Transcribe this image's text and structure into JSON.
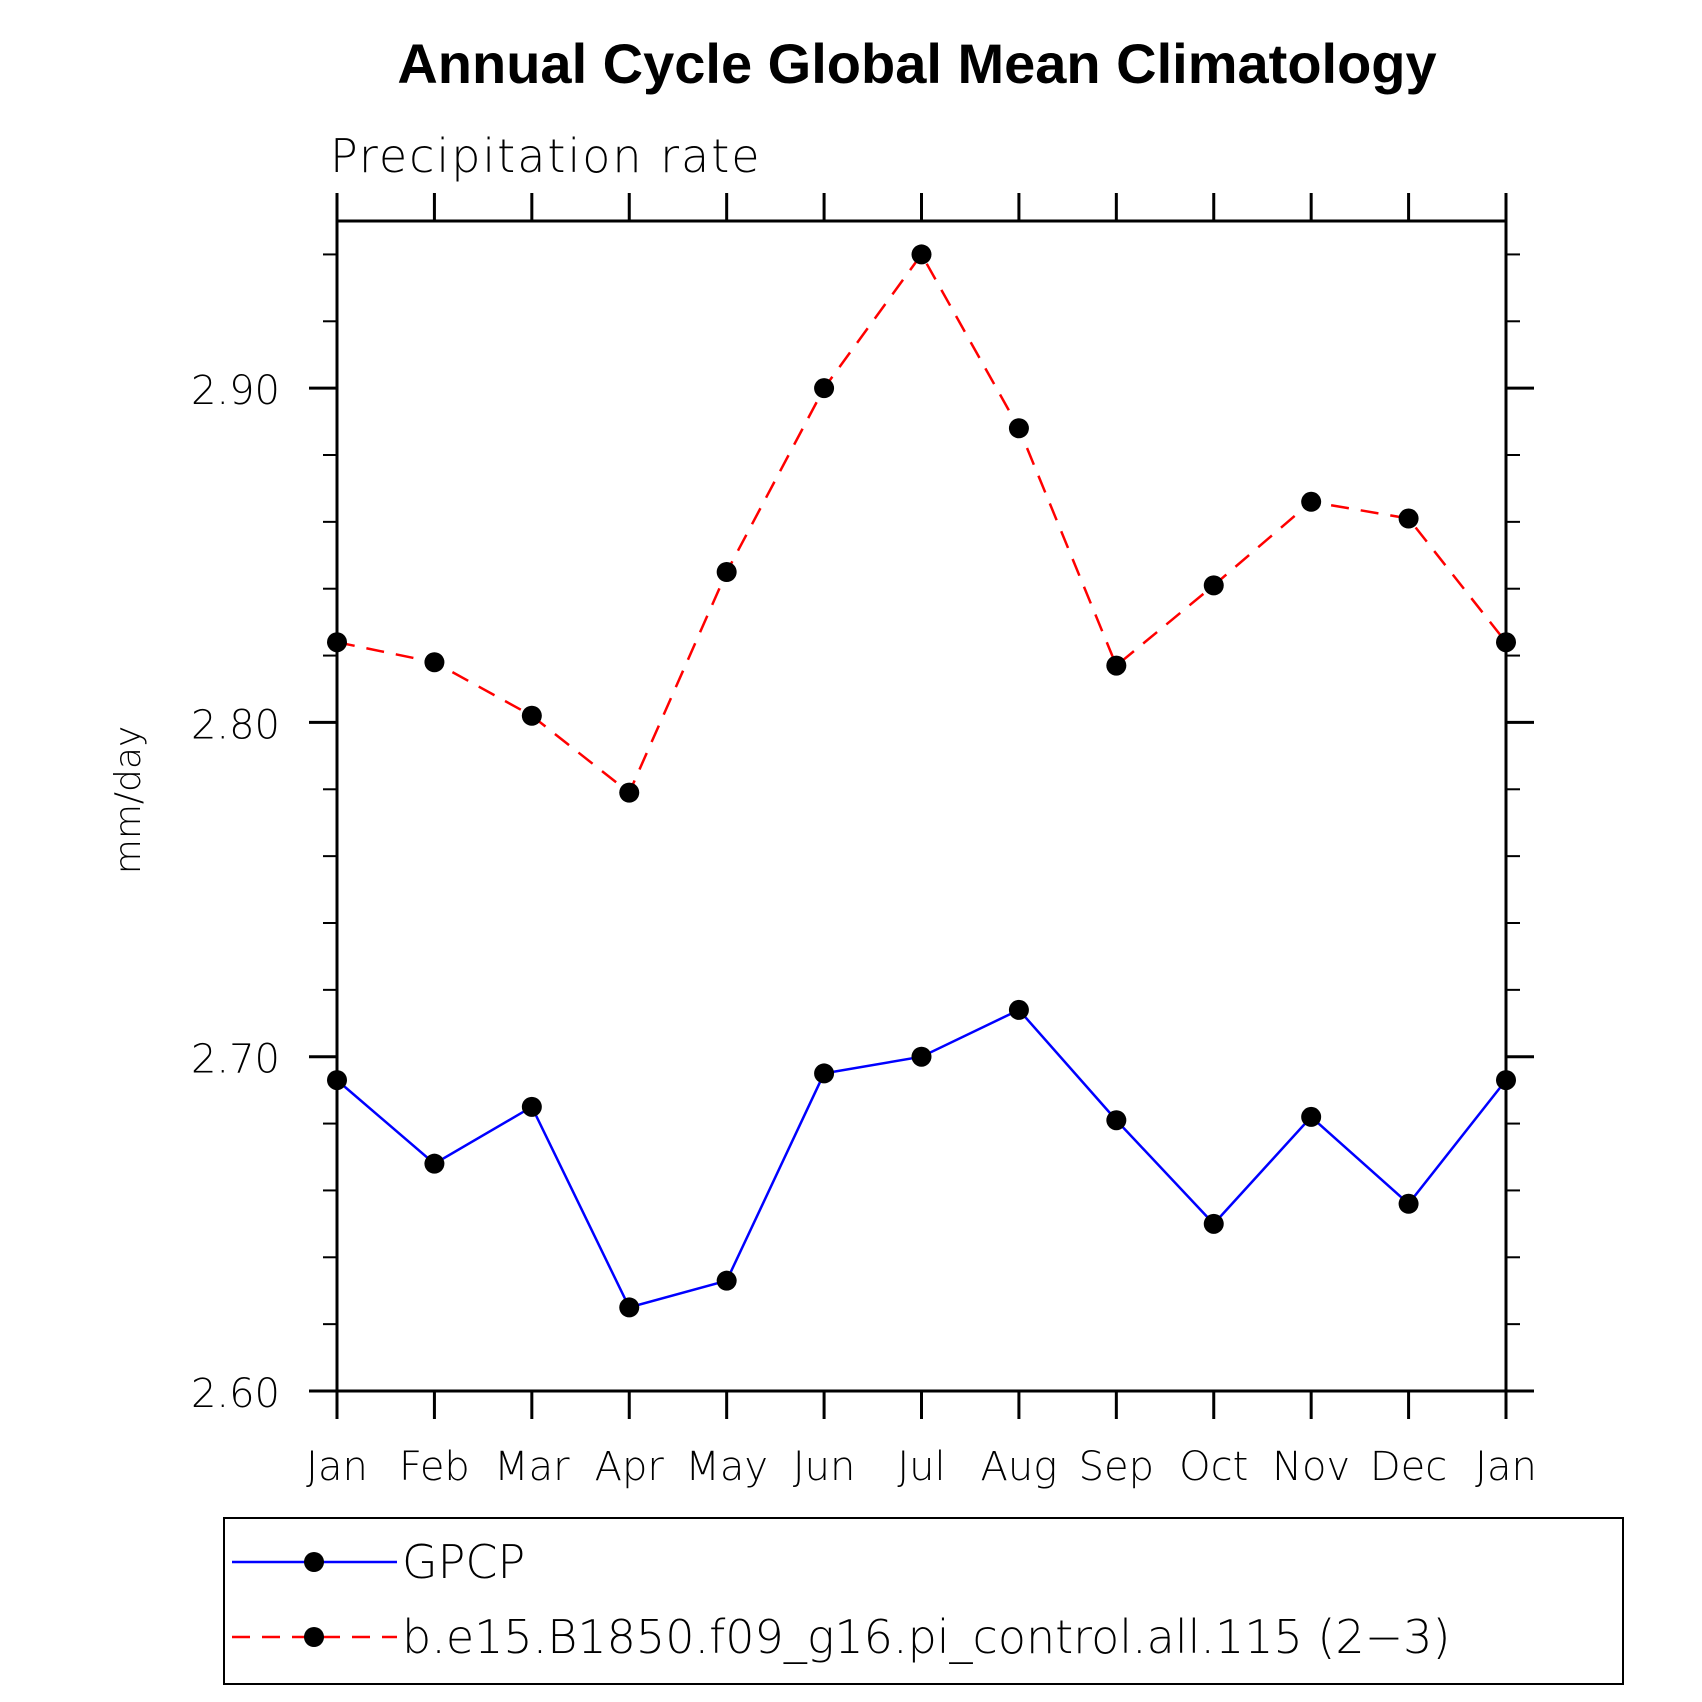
{
  "chart_data": {
    "type": "line",
    "title": "Annual Cycle Global Mean Climatology",
    "subtitle": "Precipitation rate",
    "xlabel": "",
    "ylabel": "mm/day",
    "categories": [
      "Jan",
      "Feb",
      "Mar",
      "Apr",
      "May",
      "Jun",
      "Jul",
      "Aug",
      "Sep",
      "Oct",
      "Nov",
      "Dec",
      "Jan"
    ],
    "ylim": [
      2.6,
      2.95
    ],
    "yticks": [
      2.6,
      2.7,
      2.8,
      2.9
    ],
    "ytick_labels": [
      "2.60",
      "2.70",
      "2.80",
      "2.90"
    ],
    "yminor_step": 0.02,
    "grid": false,
    "legend_position": "bottom",
    "series": [
      {
        "name": "GPCP",
        "color": "#0000ff",
        "dash": "solid",
        "marker": "filled-circle",
        "values": [
          2.693,
          2.668,
          2.685,
          2.625,
          2.633,
          2.695,
          2.7,
          2.714,
          2.681,
          2.65,
          2.682,
          2.656,
          2.693
        ]
      },
      {
        "name": "b.e15.B1850.f09_g16.pi_control.all.115 (2−3)",
        "color": "#ff0000",
        "dash": "dashed",
        "marker": "filled-circle",
        "values": [
          2.824,
          2.818,
          2.802,
          2.779,
          2.845,
          2.9,
          2.94,
          2.888,
          2.817,
          2.841,
          2.866,
          2.861,
          2.824
        ]
      }
    ]
  }
}
